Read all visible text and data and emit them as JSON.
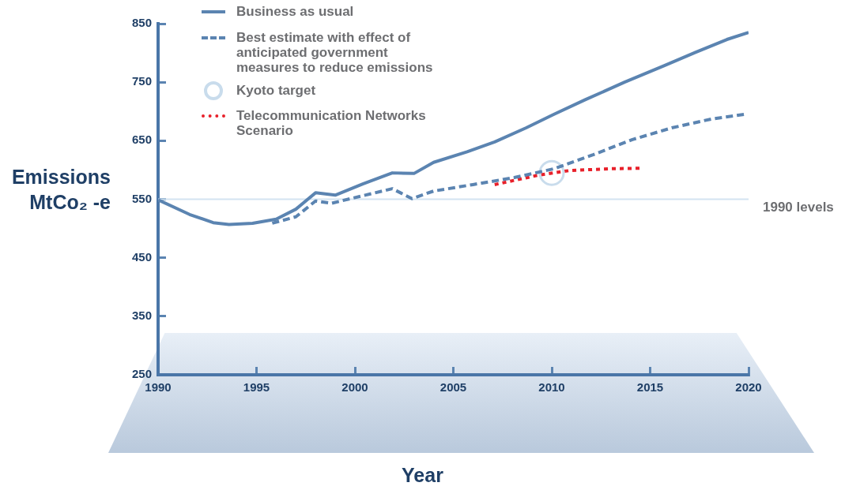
{
  "chart_data": {
    "type": "line",
    "xlabel": "Year",
    "ylabel": "Emissions MtCo₂ -e",
    "xlim": [
      1990,
      2020
    ],
    "xticks": [
      1990,
      1995,
      2000,
      2005,
      2010,
      2015,
      2020
    ],
    "ylim": [
      250,
      850
    ],
    "yticks": [
      250,
      350,
      450,
      550,
      650,
      750,
      850
    ],
    "grid": false,
    "legend": "top left",
    "ref_lines": [
      {
        "axis": "y",
        "value": 550,
        "label": "1990 levels",
        "color": "#d3e4f1"
      }
    ],
    "series": [
      {
        "name": "Business as usual",
        "type": "line",
        "color": "#5b84b1",
        "line_style": "solid",
        "marker": "none",
        "x": [
          1990,
          1991.6,
          1992.8,
          1993.6,
          1994.8,
          1996,
          1997,
          1998,
          1999,
          2000.4,
          2001.9,
          2003,
          2004,
          2005.7,
          2007.1,
          2008.7,
          2010.1,
          2011.7,
          2013.7,
          2015.7,
          2017.3,
          2018.9,
          2020
        ],
        "values": [
          549,
          524,
          510,
          507,
          509,
          516,
          533,
          561,
          557,
          576,
          595,
          594,
          613,
          631,
          648,
          672,
          695,
          720,
          750,
          778,
          801,
          823,
          835
        ]
      },
      {
        "name": "Best estimate with effect of anticipated government measures to reduce emissions",
        "type": "line",
        "color": "#5b84b1",
        "line_style": "dashed",
        "marker": "none",
        "x": [
          1995.8,
          1997,
          1998,
          1998.8,
          2000.4,
          2001.9,
          2002.9,
          2004,
          2006,
          2008.1,
          2010.1,
          2012.1,
          2014.1,
          2016.1,
          2018.1,
          2019.8
        ],
        "values": [
          509,
          520,
          547,
          543,
          556,
          568,
          551,
          564,
          575,
          587,
          602,
          626,
          652,
          672,
          687,
          695
        ]
      },
      {
        "name": "Kyoto target",
        "type": "scatter",
        "color": "#c9dcec",
        "marker": "circle",
        "x": [
          2010
        ],
        "values": [
          595
        ]
      },
      {
        "name": "Telecommunication Networks Scenario",
        "type": "line",
        "color": "#e8202a",
        "line_style": "dotted",
        "marker": "none",
        "x": [
          2007.1,
          2009.3,
          2010.9,
          2012.9,
          2014.5
        ],
        "values": [
          575,
          591,
          599,
          602,
          603
        ]
      }
    ]
  }
}
